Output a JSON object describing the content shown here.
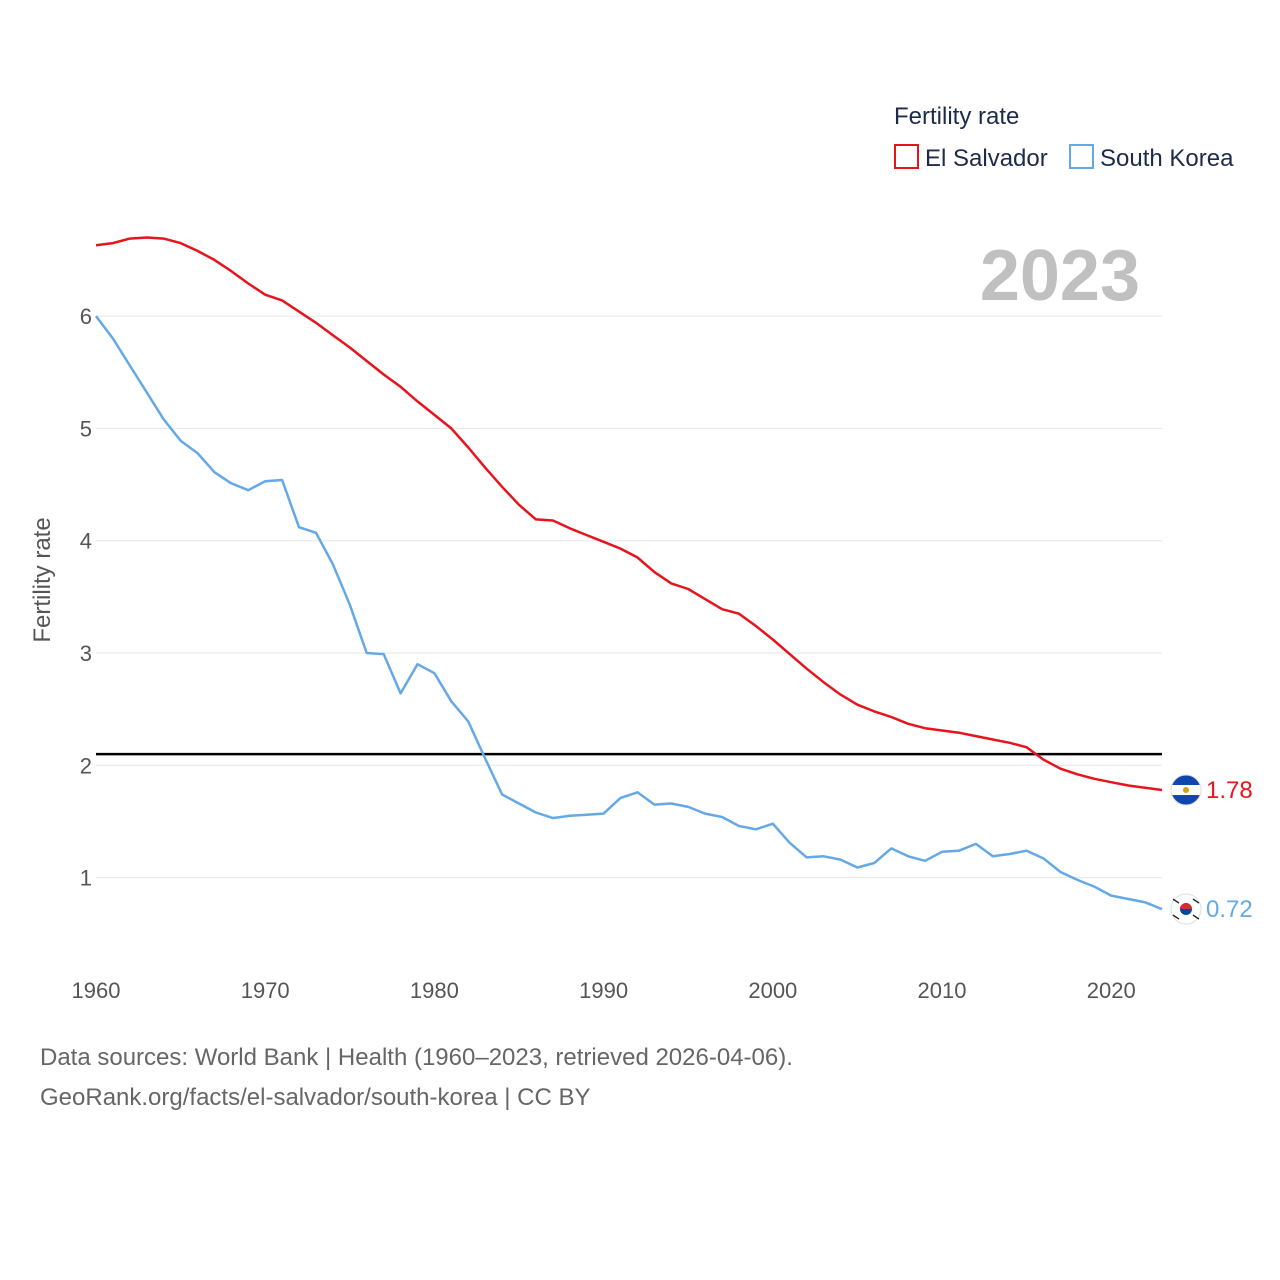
{
  "chart_data": {
    "type": "line",
    "xlabel": "",
    "ylabel": "Fertility rate",
    "x": [
      1960,
      1961,
      1962,
      1963,
      1964,
      1965,
      1966,
      1967,
      1968,
      1969,
      1970,
      1971,
      1972,
      1973,
      1974,
      1975,
      1976,
      1977,
      1978,
      1979,
      1980,
      1981,
      1982,
      1983,
      1984,
      1985,
      1986,
      1987,
      1988,
      1989,
      1990,
      1991,
      1992,
      1993,
      1994,
      1995,
      1996,
      1997,
      1998,
      1999,
      2000,
      2001,
      2002,
      2003,
      2004,
      2005,
      2006,
      2007,
      2008,
      2009,
      2010,
      2011,
      2012,
      2013,
      2014,
      2015,
      2016,
      2017,
      2018,
      2019,
      2020,
      2021,
      2022,
      2023
    ],
    "xlim": [
      1960,
      2023
    ],
    "ylim": [
      0.4,
      6.9
    ],
    "xticks": [
      "1960",
      "1970",
      "1980",
      "1990",
      "2000",
      "2010",
      "2020"
    ],
    "yticks": [
      "1",
      "2",
      "3",
      "4",
      "5",
      "6"
    ],
    "grid": true,
    "reference_line": {
      "y": 2.1,
      "color": "#000000"
    },
    "year_display": "2023",
    "legend": {
      "title": "Fertility rate",
      "position": "top-right"
    },
    "series": [
      {
        "name": "El Salvador",
        "color": "#e8141c",
        "end_label": "1.78",
        "flag": "el-salvador-flag-icon",
        "values": [
          6.63,
          6.65,
          6.69,
          6.7,
          6.69,
          6.65,
          6.58,
          6.5,
          6.4,
          6.29,
          6.19,
          6.14,
          6.04,
          5.94,
          5.83,
          5.72,
          5.6,
          5.48,
          5.37,
          5.24,
          5.12,
          5.0,
          4.83,
          4.65,
          4.48,
          4.32,
          4.19,
          4.18,
          4.11,
          4.05,
          3.99,
          3.93,
          3.85,
          3.72,
          3.62,
          3.57,
          3.48,
          3.39,
          3.35,
          3.24,
          3.12,
          2.99,
          2.86,
          2.74,
          2.63,
          2.54,
          2.48,
          2.43,
          2.37,
          2.33,
          2.31,
          2.29,
          2.26,
          2.23,
          2.2,
          2.16,
          2.05,
          1.97,
          1.92,
          1.88,
          1.85,
          1.82,
          1.8,
          1.78
        ]
      },
      {
        "name": "South Korea",
        "color": "#64a9e6",
        "end_label": "0.72",
        "flag": "south-korea-flag-icon",
        "values": [
          6.0,
          5.8,
          5.56,
          5.32,
          5.08,
          4.89,
          4.78,
          4.61,
          4.51,
          4.45,
          4.53,
          4.54,
          4.12,
          4.07,
          3.79,
          3.43,
          3.0,
          2.99,
          2.64,
          2.9,
          2.82,
          2.57,
          2.39,
          2.06,
          1.74,
          1.66,
          1.58,
          1.53,
          1.55,
          1.56,
          1.57,
          1.71,
          1.76,
          1.65,
          1.66,
          1.63,
          1.57,
          1.54,
          1.46,
          1.43,
          1.48,
          1.31,
          1.18,
          1.19,
          1.16,
          1.09,
          1.13,
          1.26,
          1.19,
          1.15,
          1.23,
          1.24,
          1.3,
          1.19,
          1.21,
          1.24,
          1.17,
          1.05,
          0.98,
          0.92,
          0.84,
          0.81,
          0.78,
          0.72
        ]
      }
    ]
  },
  "footer": {
    "line1": "Data sources: World Bank | Health (1960–2023, retrieved 2026-04-06).",
    "line2": "GeoRank.org/facts/el-salvador/south-korea | CC BY"
  }
}
